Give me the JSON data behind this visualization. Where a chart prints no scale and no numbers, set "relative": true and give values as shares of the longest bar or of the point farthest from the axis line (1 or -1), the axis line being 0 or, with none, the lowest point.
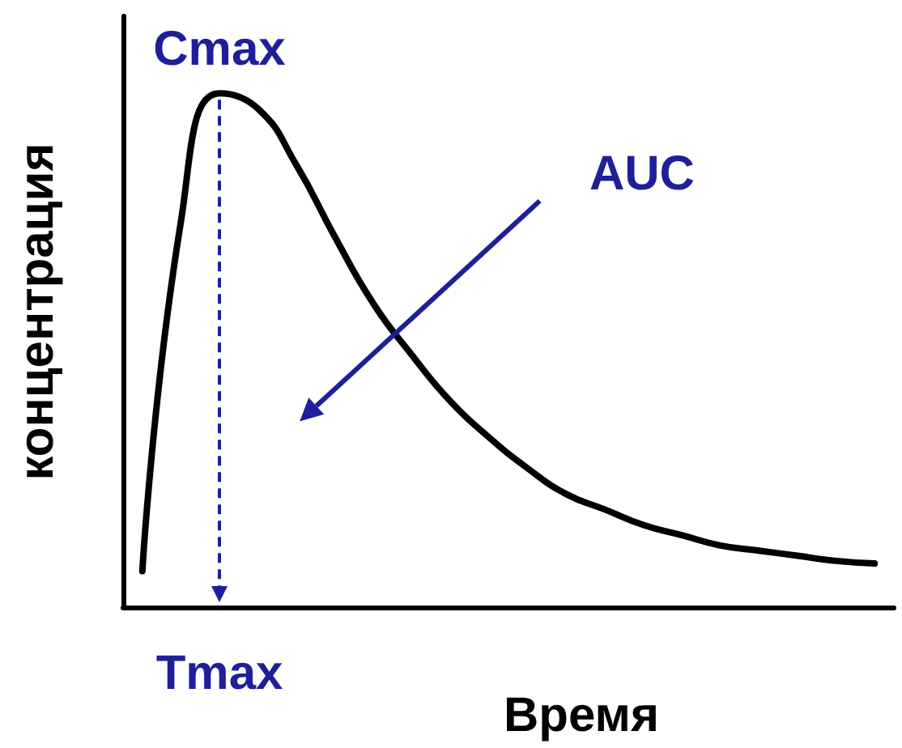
{
  "chart_data": {
    "type": "line",
    "relative": true,
    "xlabel": "Время",
    "ylabel": "концентрация",
    "categories": [
      null,
      null,
      null,
      null,
      null,
      null,
      null,
      null,
      null,
      null,
      null,
      null,
      null,
      null,
      null,
      null,
      null,
      null,
      null,
      null
    ],
    "series": [
      {
        "color": "#000000",
        "values": [
          0.07,
          0.75,
          1,
          0.97,
          0.86,
          0.72,
          0.59,
          0.49,
          0.4,
          0.33,
          0.27,
          0.22,
          0.19,
          0.16,
          0.14,
          0.12,
          0.11,
          0.1,
          0.09,
          0.085
        ]
      }
    ],
    "annotations": [
      {
        "text": "Cmax",
        "y": 1
      },
      "Tmax",
      "AUC"
    ],
    "marker": "none",
    "line_style": "solid",
    "grid": false
  }
}
